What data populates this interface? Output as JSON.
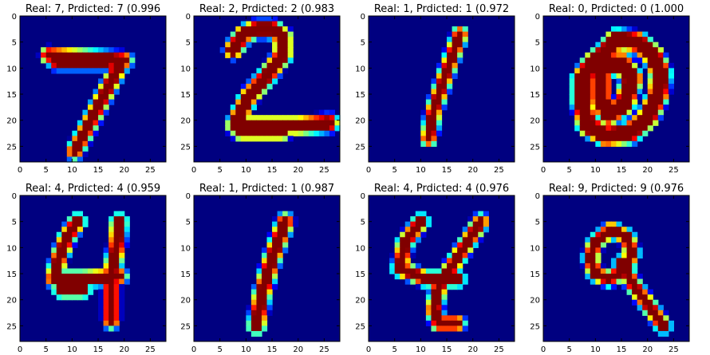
{
  "figure": {
    "type": "image-grid",
    "colormap": "jet"
  },
  "chart_data": [
    {
      "type": "heatmap",
      "title": "Real: 7, Prdicted: 7 (0.996",
      "real": 7,
      "predicted": 7,
      "confidence": "0.996",
      "xticks": [
        "0",
        "5",
        "10",
        "15",
        "20",
        "25"
      ],
      "yticks": [
        "0",
        "5",
        "10",
        "15",
        "20",
        "25"
      ],
      "xlim": [
        0,
        28
      ],
      "ylim": [
        28,
        0
      ],
      "strokes": [
        [
          [
            5.5,
            7.5
          ],
          [
            20,
            8.5
          ]
        ],
        [
          [
            7,
            8.7
          ],
          [
            17,
            8.7
          ]
        ],
        [
          [
            19.5,
            8.7
          ],
          [
            10.5,
            26
          ]
        ]
      ],
      "width": 1.5
    },
    {
      "type": "heatmap",
      "title": "Real: 2, Prdicted: 2 (0.983",
      "real": 2,
      "predicted": 2,
      "confidence": "0.983",
      "xticks": [
        "0",
        "5",
        "10",
        "15",
        "20",
        "25"
      ],
      "yticks": [
        "0",
        "5",
        "10",
        "15",
        "20",
        "25"
      ],
      "xlim": [
        0,
        28
      ],
      "ylim": [
        28,
        0
      ],
      "strokes": [
        [
          [
            7.5,
            6.5
          ],
          [
            9.5,
            3.5
          ],
          [
            12,
            2.5
          ],
          [
            15,
            2.5
          ],
          [
            17,
            4
          ],
          [
            17,
            7.5
          ],
          [
            14,
            11.5
          ],
          [
            10.5,
            15.5
          ],
          [
            8.5,
            19.5
          ],
          [
            8,
            21
          ]
        ],
        [
          [
            8,
            21
          ],
          [
            14,
            21
          ],
          [
            20,
            21
          ],
          [
            26,
            20.5
          ]
        ],
        [
          [
            9,
            22
          ],
          [
            17,
            22
          ]
        ]
      ],
      "width": 1.8
    },
    {
      "type": "heatmap",
      "title": "Real: 1, Prdicted: 1 (0.972",
      "real": 1,
      "predicted": 1,
      "confidence": "0.972",
      "xticks": [
        "0",
        "5",
        "10",
        "15",
        "20",
        "25"
      ],
      "yticks": [
        "0",
        "5",
        "10",
        "15",
        "20",
        "25"
      ],
      "xlim": [
        0,
        28
      ],
      "ylim": [
        28,
        0
      ],
      "strokes": [
        [
          [
            17.5,
            3.5
          ],
          [
            14.5,
            12
          ],
          [
            12.5,
            18
          ],
          [
            11.5,
            23.5
          ]
        ]
      ],
      "width": 1.3
    },
    {
      "type": "heatmap",
      "title": "Real: 0, Prdicted: 0 (1.000",
      "real": 0,
      "predicted": 0,
      "confidence": "1.000",
      "xticks": [
        "0",
        "5",
        "10",
        "15",
        "20",
        "25"
      ],
      "yticks": [
        "0",
        "5",
        "10",
        "15",
        "20",
        "25"
      ],
      "xlim": [
        0,
        28
      ],
      "ylim": [
        28,
        0
      ],
      "strokes": [
        [
          [
            14,
            4.5
          ],
          [
            18,
            5
          ],
          [
            21,
            7.5
          ],
          [
            22.5,
            11
          ],
          [
            22,
            15
          ],
          [
            20,
            19.5
          ],
          [
            16.5,
            22.5
          ],
          [
            12,
            23
          ],
          [
            8.5,
            21
          ],
          [
            7.5,
            16.5
          ],
          [
            7.5,
            12
          ],
          [
            9.5,
            9
          ],
          [
            12,
            7
          ],
          [
            14,
            4.5
          ]
        ],
        [
          [
            11,
            10
          ],
          [
            15,
            9
          ],
          [
            17,
            12
          ],
          [
            15.5,
            17
          ],
          [
            12.5,
            19
          ],
          [
            11,
            16
          ],
          [
            11,
            10
          ]
        ]
      ],
      "width": 2.3
    },
    {
      "type": "heatmap",
      "title": "Real: 4, Prdicted: 4 (0.959",
      "real": 4,
      "predicted": 4,
      "confidence": "0.959",
      "xticks": [
        "0",
        "5",
        "10",
        "15",
        "20",
        "25"
      ],
      "yticks": [
        "0",
        "5",
        "10",
        "15",
        "20",
        "25"
      ],
      "xlim": [
        0,
        28
      ],
      "ylim": [
        28,
        0
      ],
      "strokes": [
        [
          [
            11,
            5
          ],
          [
            9,
            8
          ],
          [
            7.5,
            12
          ],
          [
            6.5,
            16
          ]
        ],
        [
          [
            6.5,
            16
          ],
          [
            12,
            16
          ],
          [
            19,
            15.5
          ]
        ],
        [
          [
            19,
            5
          ],
          [
            18.5,
            10
          ],
          [
            17.5,
            15
          ],
          [
            17.5,
            24
          ]
        ],
        [
          [
            8,
            18
          ],
          [
            12,
            18
          ]
        ]
      ],
      "width": 1.5
    },
    {
      "type": "heatmap",
      "title": "Real: 1, Prdicted: 1 (0.987",
      "real": 1,
      "predicted": 1,
      "confidence": "0.987",
      "xticks": [
        "0",
        "5",
        "10",
        "15",
        "20",
        "25"
      ],
      "yticks": [
        "0",
        "5",
        "10",
        "15",
        "20",
        "25"
      ],
      "xlim": [
        0,
        28
      ],
      "ylim": [
        28,
        0
      ],
      "strokes": [
        [
          [
            17.5,
            5
          ],
          [
            15,
            12
          ],
          [
            13,
            19
          ],
          [
            12,
            25
          ]
        ]
      ],
      "width": 1.6
    },
    {
      "type": "heatmap",
      "title": "Real: 4, Prdicted: 4 (0.976",
      "real": 4,
      "predicted": 4,
      "confidence": "0.976",
      "xticks": [
        "0",
        "5",
        "10",
        "15",
        "20",
        "25"
      ],
      "yticks": [
        "0",
        "5",
        "10",
        "15",
        "20",
        "25"
      ],
      "xlim": [
        0,
        28
      ],
      "ylim": [
        28,
        0
      ],
      "strokes": [
        [
          [
            10,
            5
          ],
          [
            7,
            9
          ],
          [
            6,
            14
          ]
        ],
        [
          [
            6,
            14
          ],
          [
            11,
            16
          ],
          [
            17,
            16
          ]
        ],
        [
          [
            21.5,
            5
          ],
          [
            17,
            12
          ],
          [
            13.5,
            17.5
          ],
          [
            12.5,
            22
          ],
          [
            13.5,
            24.5
          ],
          [
            17,
            24.5
          ]
        ]
      ],
      "width": 1.4
    },
    {
      "type": "heatmap",
      "title": "Real: 9, Prdicted: 9 (0.976",
      "real": 9,
      "predicted": 9,
      "confidence": "0.976",
      "xticks": [
        "0",
        "5",
        "10",
        "15",
        "20",
        "25"
      ],
      "yticks": [
        "0",
        "5",
        "10",
        "15",
        "20",
        "25"
      ],
      "xlim": [
        0,
        28
      ],
      "ylim": [
        28,
        0
      ],
      "strokes": [
        [
          [
            13,
            6.5
          ],
          [
            16,
            8
          ],
          [
            17,
            11
          ],
          [
            15.5,
            14.5
          ],
          [
            12.5,
            16
          ],
          [
            10,
            15
          ],
          [
            9,
            12
          ],
          [
            10,
            9
          ],
          [
            13,
            6.5
          ]
        ],
        [
          [
            15,
            13
          ],
          [
            17.5,
            17.5
          ],
          [
            20.5,
            21.5
          ],
          [
            23,
            25
          ]
        ]
      ],
      "width": 1.3
    }
  ]
}
